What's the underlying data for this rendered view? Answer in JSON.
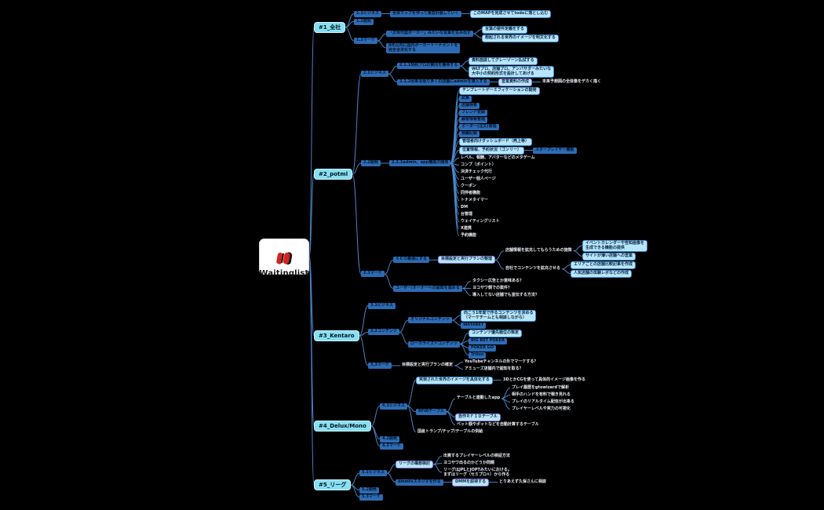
{
  "colors": {
    "background": "#000000",
    "branch_fill": "#87dff2",
    "node_fill": "#2d6cb5",
    "leaf_fill": "#b7e5fb",
    "leaf_border": "#4a90cf",
    "highlight_border": "#8b7bd8",
    "edge": "#4c88cf",
    "plain_text": "#e8edf3",
    "root_fill": "#ffffff",
    "logo_red": "#d6231e"
  },
  "root": {
    "label": "Waitinglist"
  },
  "tree": [
    {
      "label": "#1_全社",
      "style": "branch",
      "children": [
        {
          "label": "1.1ビジネス",
          "style": "box",
          "children": [
            {
              "label": "全体マップを作って運営計画していく",
              "style": "box",
              "children": [
                {
                  "label": "このMAPを完成させてtodoに落とし込む",
                  "style": "leaf"
                }
              ]
            }
          ]
        },
        {
          "label": "1.2開発",
          "style": "box"
        },
        {
          "label": "1.3マーケ",
          "style": "box",
          "children": [
            {
              "label": "「次世代型ポーカー」みたいな言葉を生み出す",
              "style": "box",
              "children": [
                {
                  "label": "言葉の要件定義をする",
                  "style": "leaf"
                },
                {
                  "label": "想起される世界のイメージを明文化する",
                  "style": "leaf"
                }
              ]
            },
            {
              "label": "8年以内に国内ポーカートーナメントを\n完全合法化する",
              "style": "box"
            }
          ]
        }
      ]
    },
    {
      "label": "#2_potml",
      "style": "branch",
      "children": [
        {
          "label": "2.1ビジネス",
          "style": "box",
          "children": [
            {
              "label": "2.1.1契約プロの賛同を獲得する",
              "style": "box",
              "children": [
                {
                  "label": "資料面談してグレーゾーン払拭する",
                  "style": "leaf"
                },
                {
                  "label": "WLTプロ、店舗プロ、アンバサダーみたいな\n大中小の契約形式を設計してあげる",
                  "style": "leaf"
                }
              ]
            },
            {
              "label": "2.1.2出来る限り多くの店舗にadminを導入する",
              "style": "box",
              "children": [
                {
                  "label": "営業資料の作成",
                  "style": "hl",
                  "children": [
                    {
                      "label": "未来予想図の全体像をデカく描く",
                      "style": "text"
                    }
                  ]
                }
              ]
            }
          ]
        },
        {
          "label": "2.2開発",
          "style": "box",
          "children": [
            {
              "label": "2.2.1admin、app機能の開発",
              "style": "box",
              "children": [
                {
                  "label": "テンプレートゲーミフィケーションの開発",
                  "style": "leaf"
                },
                {
                  "label": "試算",
                  "style": "box"
                },
                {
                  "label": "店舗検索",
                  "style": "box"
                },
                {
                  "label": "フレンド登録",
                  "style": "box"
                },
                {
                  "label": "顧客情報管理",
                  "style": "box"
                },
                {
                  "label": "オーダー(注文)管理",
                  "style": "box"
                },
                {
                  "label": "戦績記録",
                  "style": "box"
                },
                {
                  "label": "管理者向けダッシュボード（売上等）",
                  "style": "leaf"
                },
                {
                  "label": "位置情報、予約状況（ゴンリー）",
                  "style": "leaf",
                  "children": [
                    {
                      "label": "スタープレイヤー機能",
                      "style": "box"
                    }
                  ]
                },
                {
                  "label": "レベル、報酬、アバターなどのメタゲーム",
                  "style": "text"
                },
                {
                  "label": "コンプ（ポイント）",
                  "style": "text"
                },
                {
                  "label": "決済チェック代行",
                  "style": "text"
                },
                {
                  "label": "ユーザー個人ページ",
                  "style": "text"
                },
                {
                  "label": "クーポン",
                  "style": "text"
                },
                {
                  "label": "同伴者機能",
                  "style": "text"
                },
                {
                  "label": "トナメタイマー",
                  "style": "text"
                },
                {
                  "label": "DM",
                  "style": "text"
                },
                {
                  "label": "台管理",
                  "style": "text"
                },
                {
                  "label": "ウェイティングリスト",
                  "style": "text"
                },
                {
                  "label": "X連携",
                  "style": "text"
                },
                {
                  "label": "予約機能",
                  "style": "text"
                }
              ]
            }
          ]
        },
        {
          "label": "2.3マーケ",
          "style": "box",
          "children": [
            {
              "label": "ＳＥＯ最強にする",
              "style": "box",
              "children": [
                {
                  "label": "目標設定と実行プランの整理",
                  "style": "hl",
                  "children": [
                    {
                      "label": "店舗情報を拡充してもらうための施策",
                      "style": "text",
                      "children": [
                        {
                          "label": "イベントカレンダーや告知画像を\n生成できる機能の提供",
                          "style": "leaf"
                        },
                        {
                          "label": "サイトが薄い店舗への営業",
                          "style": "leaf"
                        }
                      ]
                    },
                    {
                      "label": "自社でコンテンツを拡充させる",
                      "style": "text",
                      "children": [
                        {
                          "label": "エリアごとの店舗比較記事を作成",
                          "style": "leaf"
                        },
                        {
                          "label": "人気店舗の体験レポなどの作成",
                          "style": "leaf"
                        }
                      ]
                    }
                  ]
                }
              ]
            },
            {
              "label": "ユーザー/オーナーへの認知を進める",
              "style": "box",
              "children": [
                {
                  "label": "タクシー広告とか意味ある？",
                  "style": "text"
                },
                {
                  "label": "ヨコサワ側での案件？",
                  "style": "text"
                },
                {
                  "label": "導入してない店舗でも宣伝する方法？",
                  "style": "text"
                }
              ]
            }
          ]
        }
      ]
    },
    {
      "label": "#3_Kentaro",
      "style": "branch",
      "children": [
        {
          "label": "3.1ビジネス",
          "style": "box"
        },
        {
          "label": "3.2コンテンツ",
          "style": "box",
          "children": [
            {
              "label": "オリジナルコンテンツ",
              "style": "box",
              "children": [
                {
                  "label": "向こう1年間で作るコンテンツを決める\n（マーケチームとも相談しながら）",
                  "style": "leaf"
                },
                {
                  "label": "WATABET",
                  "style": "box"
                }
              ]
            },
            {
              "label": "ローカライズドコンテンツ",
              "style": "box",
              "children": [
                {
                  "label": "コンテンツ優先順位の策定",
                  "style": "leaf"
                },
                {
                  "label": "BIG BET POKER",
                  "style": "box"
                },
                {
                  "label": "POKER GO",
                  "style": "box"
                },
                {
                  "label": "Triton",
                  "style": "box"
                }
              ]
            }
          ]
        },
        {
          "label": "3.3マーケ",
          "style": "box",
          "children": [
            {
              "label": "目標設定と実行プランの確定",
              "style": "text",
              "children": [
                {
                  "label": "YouTubeチャンネルの外でマーケする？",
                  "style": "text"
                },
                {
                  "label": "アミューズ店舗内で認知を取る？",
                  "style": "text"
                }
              ]
            }
          ]
        }
      ]
    },
    {
      "label": "#4_Delux/Mono",
      "style": "branch",
      "children": [
        {
          "label": "4.1ビジネス",
          "style": "box",
          "children": [
            {
              "label": "実現された世界のイメージを具体化する",
              "style": "leaf",
              "children": [
                {
                  "label": "3DとかCGを使って具体的イメージ画像を作る",
                  "style": "text"
                }
              ]
            },
            {
              "label": "RFIDテーブル",
              "style": "box",
              "children": [
                {
                  "label": "テーブルと連動したapp",
                  "style": "text",
                  "children": [
                    {
                      "label": "プレイ履歴をgtowizardで解析",
                      "style": "text"
                    },
                    {
                      "label": "相手のハンドを有料で覗き見れる",
                      "style": "text"
                    },
                    {
                      "label": "プレイのリアルタイム配信が出来る",
                      "style": "text"
                    },
                    {
                      "label": "プレイヤーレベルや実力の可視化",
                      "style": "text"
                    }
                  ]
                },
                {
                  "label": "自作ＲＦＩＤテーブル",
                  "style": "hl"
                },
                {
                  "label": "ベット額やポットなどを自動計算するテーブル",
                  "style": "text"
                }
              ]
            },
            {
              "label": "国産トランプ/チップ/テーブルの供給",
              "style": "text"
            }
          ]
        },
        {
          "label": "4.2開発",
          "style": "box"
        },
        {
          "label": "4.3マーケ",
          "style": "box"
        }
      ]
    },
    {
      "label": "#5_リーグ",
      "style": "branch",
      "children": [
        {
          "label": "5.1ビジネス",
          "style": "box",
          "children": [
            {
              "label": "リーグの構想検討",
              "style": "hl",
              "children": [
                {
                  "label": "出資するプレイヤーレベルの検証方法",
                  "style": "text"
                },
                {
                  "label": "ヨコサワ出るのかどうか問題",
                  "style": "text"
                },
                {
                  "label": "リーグはJPLとJOPTみたいにおける。\nまずはリーグ（セミプロ①）から作る",
                  "style": "text"
                }
              ]
            },
            {
              "label": "dmmtvスタジオを作る",
              "style": "box",
              "children": [
                {
                  "label": "DMMを説得する",
                  "style": "hl",
                  "children": [
                    {
                      "label": "とりあえず久保さんに相談",
                      "style": "text"
                    }
                  ]
                }
              ]
            }
          ]
        },
        {
          "label": "5.2開発",
          "style": "box"
        },
        {
          "label": "5.3マーケ",
          "style": "box"
        }
      ]
    }
  ]
}
